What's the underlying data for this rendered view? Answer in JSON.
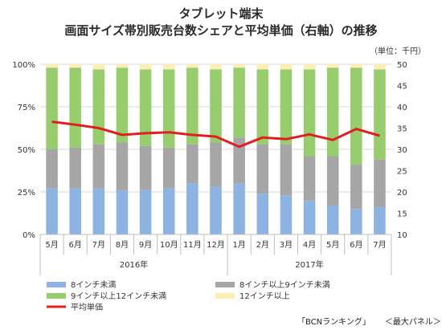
{
  "title_line1": "タブレット端末",
  "title_line2": "画面サイズ帯別販売台数シェアと平均単価（右軸）の推移",
  "unit_label": "（単位：千円）",
  "footer": {
    "source": "「BCNランキング」",
    "scope": "＜最大パネル＞"
  },
  "chart_data": {
    "type": "stacked-bar-with-line",
    "categories": [
      "5月",
      "6月",
      "7月",
      "8月",
      "9月",
      "10月",
      "11月",
      "12月",
      "1月",
      "2月",
      "3月",
      "4月",
      "5月",
      "6月",
      "7月"
    ],
    "year_groups": [
      {
        "label": "2016年",
        "span": 8
      },
      {
        "label": "2017年",
        "span": 7
      }
    ],
    "left_axis": {
      "ticks": [
        "0%",
        "25%",
        "50%",
        "75%",
        "100%"
      ],
      "ylim": [
        0,
        100
      ]
    },
    "right_axis": {
      "ticks": [
        "10",
        "15",
        "20",
        "25",
        "30",
        "35",
        "40",
        "45",
        "50"
      ],
      "ylim": [
        10,
        50
      ]
    },
    "series": [
      {
        "name": "8インチ未満",
        "color": "#8db3e2",
        "values": [
          27,
          27,
          27,
          26,
          26,
          27,
          30,
          28,
          30,
          24,
          23,
          20,
          17,
          15,
          16
        ]
      },
      {
        "name": "8インチ以上9インチ未満",
        "color": "#a6a6a6",
        "values": [
          23,
          24,
          26,
          28,
          26,
          24,
          23,
          26,
          27,
          29,
          30,
          26,
          29,
          26,
          28
        ]
      },
      {
        "name": "9インチ以上12インチ未満",
        "color": "#98cd6e",
        "values": [
          48,
          47,
          44,
          44,
          45,
          46,
          45,
          43,
          41,
          44,
          44,
          51,
          52,
          57,
          53
        ]
      },
      {
        "name": "12インチ以上",
        "color": "#fdeeb6",
        "values": [
          2,
          2,
          3,
          2,
          3,
          3,
          2,
          3,
          2,
          3,
          3,
          3,
          2,
          2,
          3
        ]
      }
    ],
    "line": {
      "name": "平均単価",
      "color": "#e02020",
      "axis": "right",
      "values": [
        36.5,
        35.8,
        35.0,
        33.4,
        33.8,
        34.0,
        33.4,
        33.0,
        30.6,
        32.8,
        32.4,
        33.5,
        32.2,
        34.8,
        33.2
      ]
    },
    "legend_position": "bottom-left",
    "grid": true
  }
}
